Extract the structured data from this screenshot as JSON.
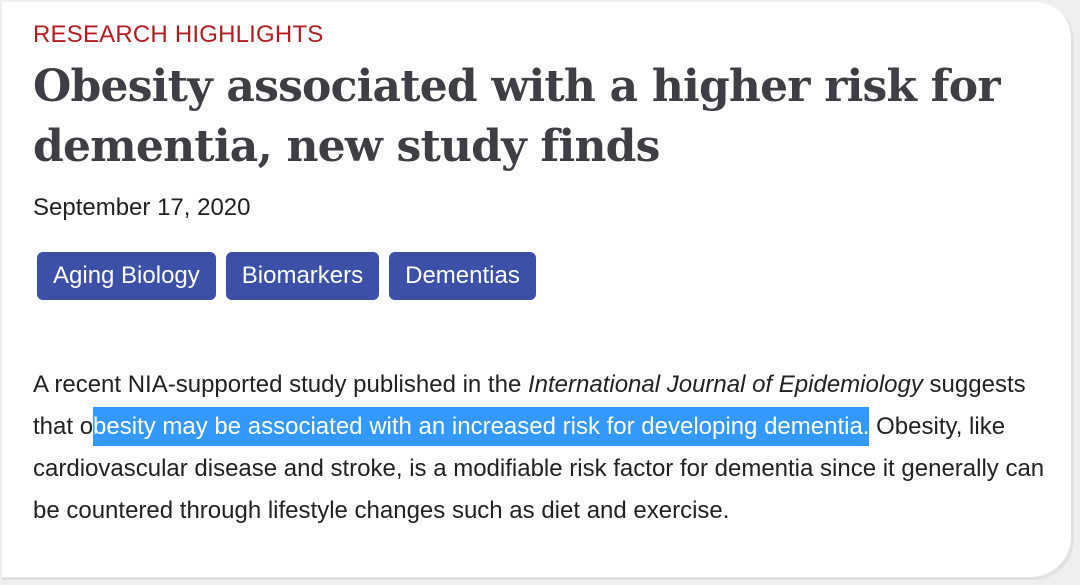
{
  "article": {
    "eyebrow": "RESEARCH HIGHLIGHTS",
    "title": "Obesity associated with a higher risk for dementia, new study finds",
    "date": "September 17, 2020",
    "tags": [
      {
        "label": "Aging Biology"
      },
      {
        "label": "Biomarkers"
      },
      {
        "label": "Dementias"
      }
    ],
    "body": {
      "intro": "A recent NIA-supported study published in the ",
      "journal": "International Journal of Epidemiology",
      "pre_highlight": " suggests that o",
      "highlight": "besity may be associated with an increased risk for developing dementia.",
      "post_highlight": " Obesity, like cardiovascular disease and stroke, is a modifiable risk factor for dementia since it generally can be countered through lifestyle changes such as diet and exercise."
    }
  },
  "colors": {
    "eyebrow": "#b01e23",
    "title": "#3d3f44",
    "tag_background": "#3c50a7",
    "selection_highlight": "#3399ff"
  }
}
